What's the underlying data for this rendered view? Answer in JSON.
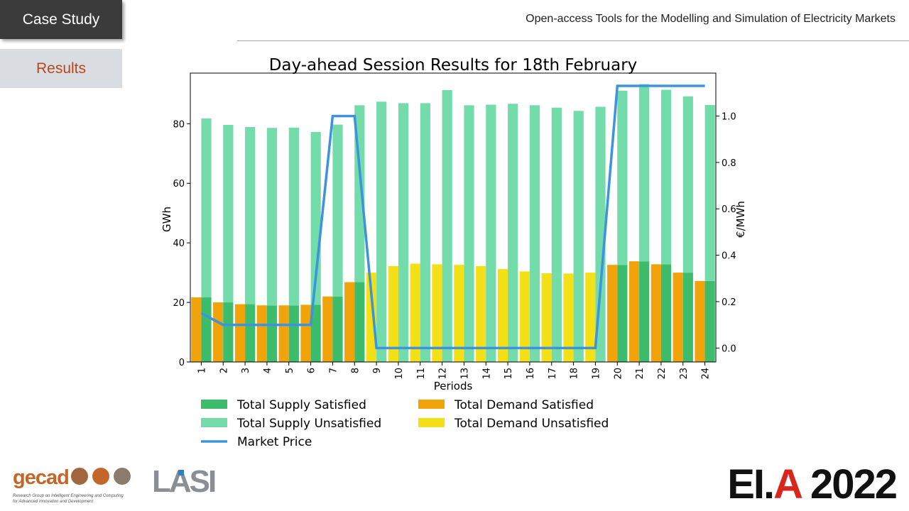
{
  "slide": {
    "section_tab": "Case Study",
    "subsection_tab": "Results",
    "header_title": "Open-access Tools for the Modelling and Simulation of Electricity Markets"
  },
  "logos": {
    "gecad": {
      "wordmark": "gecad",
      "tagline_line1": "Research Group on Intelligent Engineering and Computing",
      "tagline_line2": "for Advanced Innovation and Development"
    },
    "lasi": {
      "wordmark": "LASI"
    },
    "eia": {
      "wordmark_prefix": "EI.",
      "wordmark_accent": "A",
      "wordmark_suffix": " 2022"
    }
  },
  "colors": {
    "supply_satisfied": "#3dbd6c",
    "supply_unsatisfied": "#74dbaa",
    "demand_satisfied": "#f0a30a",
    "demand_unsatisfied": "#f4e017",
    "market_price": "#3d93dd"
  },
  "chart_data": {
    "type": "bar",
    "title": "Day-ahead Session Results for 18th February",
    "xlabel": "Periods",
    "ylabel": "GWh",
    "y2label": "€/MWh",
    "categories": [
      "1",
      "2",
      "3",
      "4",
      "5",
      "6",
      "7",
      "8",
      "9",
      "10",
      "11",
      "12",
      "13",
      "14",
      "15",
      "16",
      "17",
      "18",
      "19",
      "20",
      "21",
      "22",
      "23",
      "24"
    ],
    "ylim": [
      0,
      97
    ],
    "yticks": [
      0,
      20,
      40,
      60,
      80
    ],
    "y2lim": [
      -0.06,
      1.185
    ],
    "y2ticks": [
      0.0,
      0.2,
      0.4,
      0.6,
      0.8,
      1.0
    ],
    "y2ticklabels": [
      "0.0",
      "0.2",
      "0.4",
      "0.6",
      "0.8",
      "1.0"
    ],
    "legend_position": "below",
    "series": [
      {
        "name": "Total Supply Satisfied",
        "kind": "bar",
        "group": "supply",
        "stack": "base",
        "color_key": "supply_satisfied",
        "values": [
          21.7,
          20.0,
          19.4,
          19.0,
          19.0,
          19.2,
          22.0,
          26.8,
          0,
          0,
          0,
          0,
          0,
          0,
          0,
          0,
          0,
          0,
          0,
          32.6,
          33.8,
          32.8,
          30.0,
          27.2
        ]
      },
      {
        "name": "Total Supply Unsatisfied",
        "kind": "bar",
        "group": "supply",
        "stack": "top",
        "color_key": "supply_unsatisfied",
        "values": [
          60.1,
          59.6,
          59.5,
          59.6,
          59.7,
          58.0,
          57.7,
          59.4,
          87.4,
          86.9,
          86.9,
          91.3,
          86.2,
          86.4,
          86.7,
          86.2,
          85.4,
          84.3,
          85.7,
          58.5,
          59.5,
          58.6,
          59.2,
          59.1
        ]
      },
      {
        "name": "Total Demand Satisfied",
        "kind": "bar",
        "group": "demand",
        "stack": "base",
        "color_key": "demand_satisfied",
        "values": [
          21.7,
          20.0,
          19.4,
          19.0,
          19.0,
          19.2,
          22.0,
          26.8,
          0,
          0,
          0,
          0,
          0,
          0,
          0,
          0,
          0,
          0,
          0,
          32.6,
          33.8,
          32.8,
          30.0,
          27.2
        ]
      },
      {
        "name": "Total Demand Unsatisfied",
        "kind": "bar",
        "group": "demand",
        "stack": "top",
        "color_key": "demand_unsatisfied",
        "values": [
          0,
          0,
          0,
          0,
          0,
          0,
          0,
          0,
          30.0,
          32.2,
          33.0,
          32.8,
          32.6,
          32.2,
          31.2,
          30.4,
          29.8,
          29.7,
          30.0,
          0,
          0,
          0,
          0,
          0
        ]
      },
      {
        "name": "Market Price",
        "kind": "line",
        "axis": "y2",
        "color_key": "market_price",
        "values": [
          0.15,
          0.1,
          0.1,
          0.1,
          0.1,
          0.1,
          1.0,
          1.0,
          0.0,
          0.0,
          0.0,
          0.0,
          0.0,
          0.0,
          0.0,
          0.0,
          0.0,
          0.0,
          0.0,
          1.13,
          1.13,
          1.13,
          1.13,
          1.13
        ]
      }
    ]
  }
}
